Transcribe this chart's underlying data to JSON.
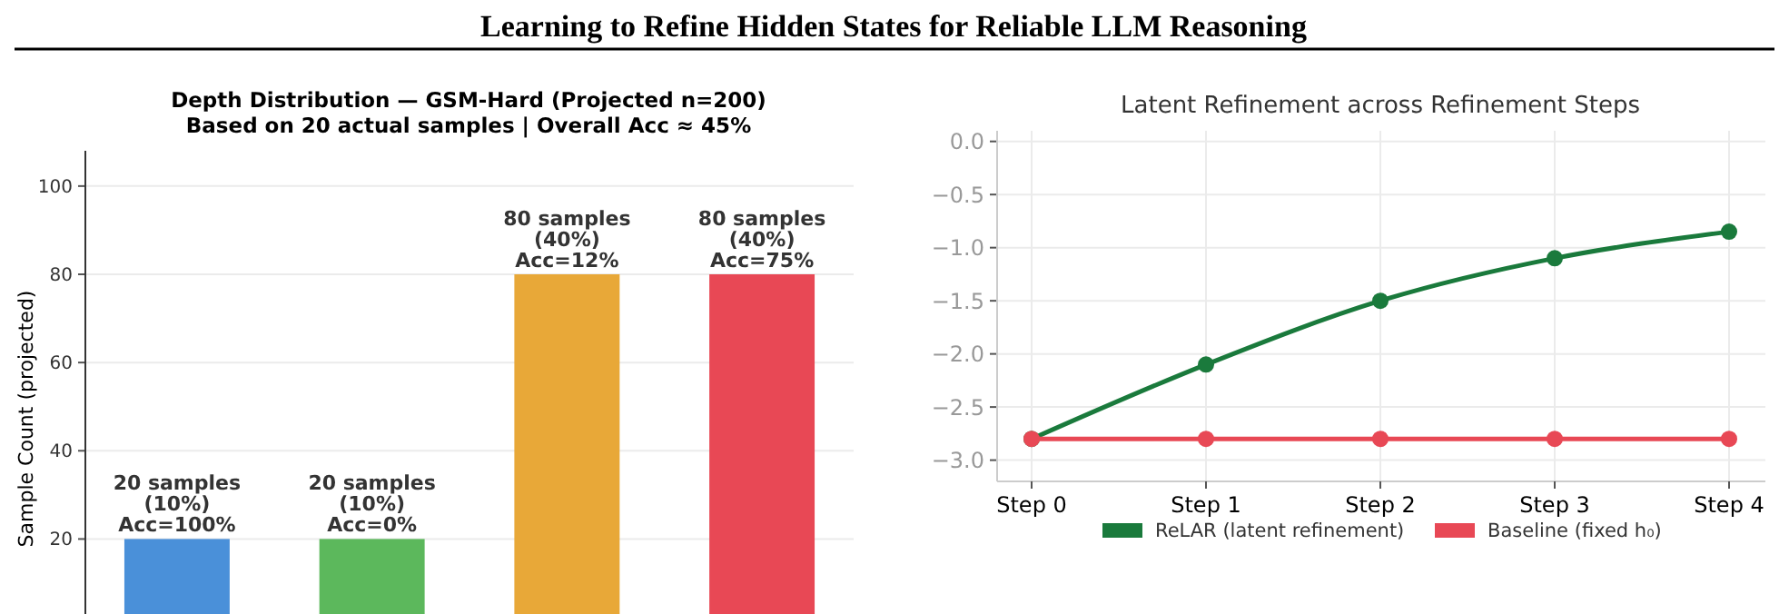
{
  "chart_data": [
    {
      "type": "other",
      "title": "Learning to Refine Hidden States for Reliable LLM Reasoning"
    },
    {
      "type": "bar",
      "title": "Depth Distribution — GSM-Hard (Projected n=200)",
      "subtitle": "Based on 20 actual samples  |  Overall Acc ≈ 45%",
      "ylabel": "Sample Count (projected)",
      "categories": [
        null,
        null,
        null,
        null
      ],
      "values": [
        20,
        20,
        80,
        80
      ],
      "colors": [
        "#4a90d9",
        "#5cb85c",
        "#e8a838",
        "#e84855"
      ],
      "value_labels": [
        "20 samples\n(10%)\nAcc=100%",
        "20 samples\n(10%)\nAcc=0%",
        "80 samples\n(40%)\nAcc=12%",
        "80 samples\n(40%)\nAcc=75%"
      ],
      "ylim": [
        3,
        108
      ],
      "yticks": [
        20,
        40,
        60,
        80,
        100
      ],
      "grid": "y",
      "tick_labels": "y"
    },
    {
      "type": "line",
      "title": "Latent Refinement across Refinement Steps",
      "categories": [
        "Step 0",
        "Step 1",
        "Step 2",
        "Step 3",
        "Step 4"
      ],
      "series": [
        {
          "name": "ReLAR (latent refinement)",
          "color": "#1a7a3c",
          "values": [
            -2.8,
            -2.1,
            -1.5,
            -1.1,
            -0.85
          ]
        },
        {
          "name": "Baseline (fixed h₀)",
          "color": "#e84855",
          "values": [
            -2.8,
            -2.8,
            -2.8,
            -2.8,
            -2.8
          ]
        }
      ],
      "ylim": [
        -3.2,
        0.1
      ],
      "yticks": [
        {
          "value": 0,
          "label": "0.0"
        },
        {
          "value": -0.5,
          "label": "−0.5"
        },
        {
          "value": -1,
          "label": "−1.0"
        },
        {
          "value": -1.5,
          "label": "−1.5"
        },
        {
          "value": -2,
          "label": "−2.0"
        },
        {
          "value": -2.5,
          "label": "−2.5"
        },
        {
          "value": -3,
          "label": "−3.0"
        }
      ],
      "grid": true,
      "legend": "bottom",
      "marker": "circle",
      "line_style": "solid"
    }
  ]
}
